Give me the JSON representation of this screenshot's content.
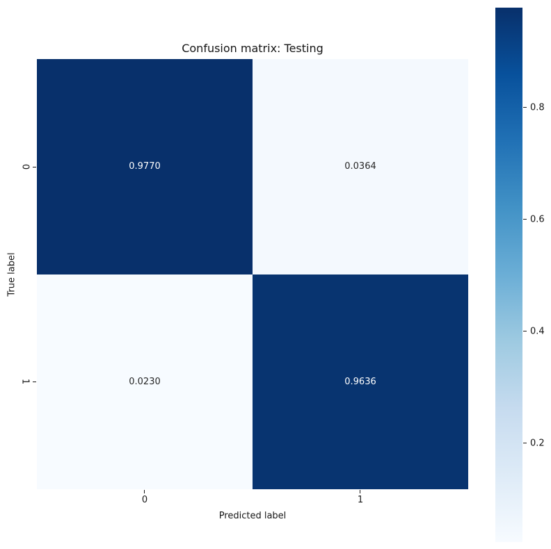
{
  "chart_data": {
    "type": "heatmap",
    "title": "Confusion matrix: Testing",
    "xlabel": "Predicted label",
    "ylabel": "True label",
    "x_categories": [
      "0",
      "1"
    ],
    "y_categories": [
      "0",
      "1"
    ],
    "matrix": [
      [
        0.977,
        0.0364
      ],
      [
        0.023,
        0.9636
      ]
    ],
    "cell_labels": [
      [
        "0.9770",
        "0.0364"
      ],
      [
        "0.0230",
        "0.9636"
      ]
    ],
    "cell_colors": [
      [
        "#08306b",
        "#f4f9fe"
      ],
      [
        "#f7fbff",
        "#083470"
      ]
    ],
    "cell_text_colors": [
      [
        "#ffffff",
        "#262626"
      ],
      [
        "#262626",
        "#ffffff"
      ]
    ],
    "colormap": "Blues",
    "grid": false,
    "colorbar": {
      "position": "right",
      "value_range": [
        0.023,
        0.977
      ],
      "tick_labels": [
        "0.8",
        "0.6",
        "0.4",
        "0.2"
      ],
      "gradient_stops_top_to_bottom": [
        "#08306b",
        "#08519c",
        "#2171b5",
        "#4292c6",
        "#6baed6",
        "#9ecae1",
        "#c6dbef",
        "#deebf7",
        "#f7fbff"
      ]
    }
  }
}
